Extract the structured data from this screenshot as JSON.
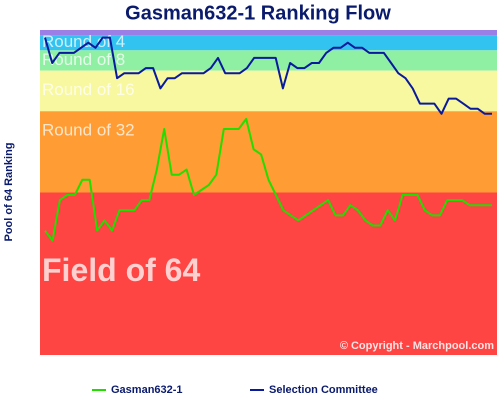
{
  "chart_data": {
    "type": "line",
    "title": "Gasman632-1 Ranking Flow",
    "y_label": "Pool of 64 Ranking",
    "ylim": [
      64.5,
      0.5
    ],
    "bands": [
      {
        "label": null,
        "from": 0.5,
        "to": 1.5,
        "color": "#9b7fe6"
      },
      {
        "label": "Round of 4",
        "from": 1.5,
        "to": 4.5,
        "color": "#33c3f0"
      },
      {
        "label": "Round of 8",
        "from": 4.5,
        "to": 8.5,
        "color": "#8ff0a4"
      },
      {
        "label": "Round of 16",
        "from": 8.5,
        "to": 16.5,
        "color": "#f8f8a0"
      },
      {
        "label": "Round of 32",
        "from": 16.5,
        "to": 32.5,
        "color": "#ff9c33"
      },
      {
        "label": "Field of 64",
        "from": 32.5,
        "to": 64.5,
        "color": "#ff4444"
      }
    ],
    "series": [
      {
        "name": "Gasman632-1",
        "color": "#22dd00",
        "values": [
          40,
          42,
          34,
          33,
          33,
          30,
          30,
          40,
          38,
          40,
          36,
          36,
          36,
          34,
          34,
          28,
          20,
          29,
          29,
          28,
          33,
          32,
          31,
          29,
          20,
          20,
          20,
          18,
          24,
          25,
          30,
          33,
          36,
          37,
          38,
          37,
          36,
          35,
          34,
          37,
          37,
          35,
          36,
          38,
          39,
          39,
          36,
          38,
          33,
          33,
          33,
          36,
          37,
          37,
          34,
          34,
          34,
          35,
          35,
          35,
          35
        ]
      },
      {
        "name": "Selection Committee",
        "color": "#0a1a9c",
        "values": [
          2,
          7,
          5,
          5,
          5,
          4,
          3,
          4,
          2,
          2,
          10,
          9,
          9,
          9,
          8,
          8,
          12,
          10,
          10,
          9,
          9,
          9,
          9,
          8,
          6,
          9,
          9,
          9,
          8,
          6,
          6,
          6,
          6,
          12,
          7,
          8,
          8,
          7,
          7,
          5,
          4,
          4,
          3,
          4,
          4,
          5,
          5,
          5,
          7,
          9,
          10,
          12,
          15,
          15,
          15,
          17,
          14,
          14,
          15,
          16,
          16,
          17,
          17
        ]
      }
    ],
    "copyright": "© Copyright - Marchpool.com"
  }
}
